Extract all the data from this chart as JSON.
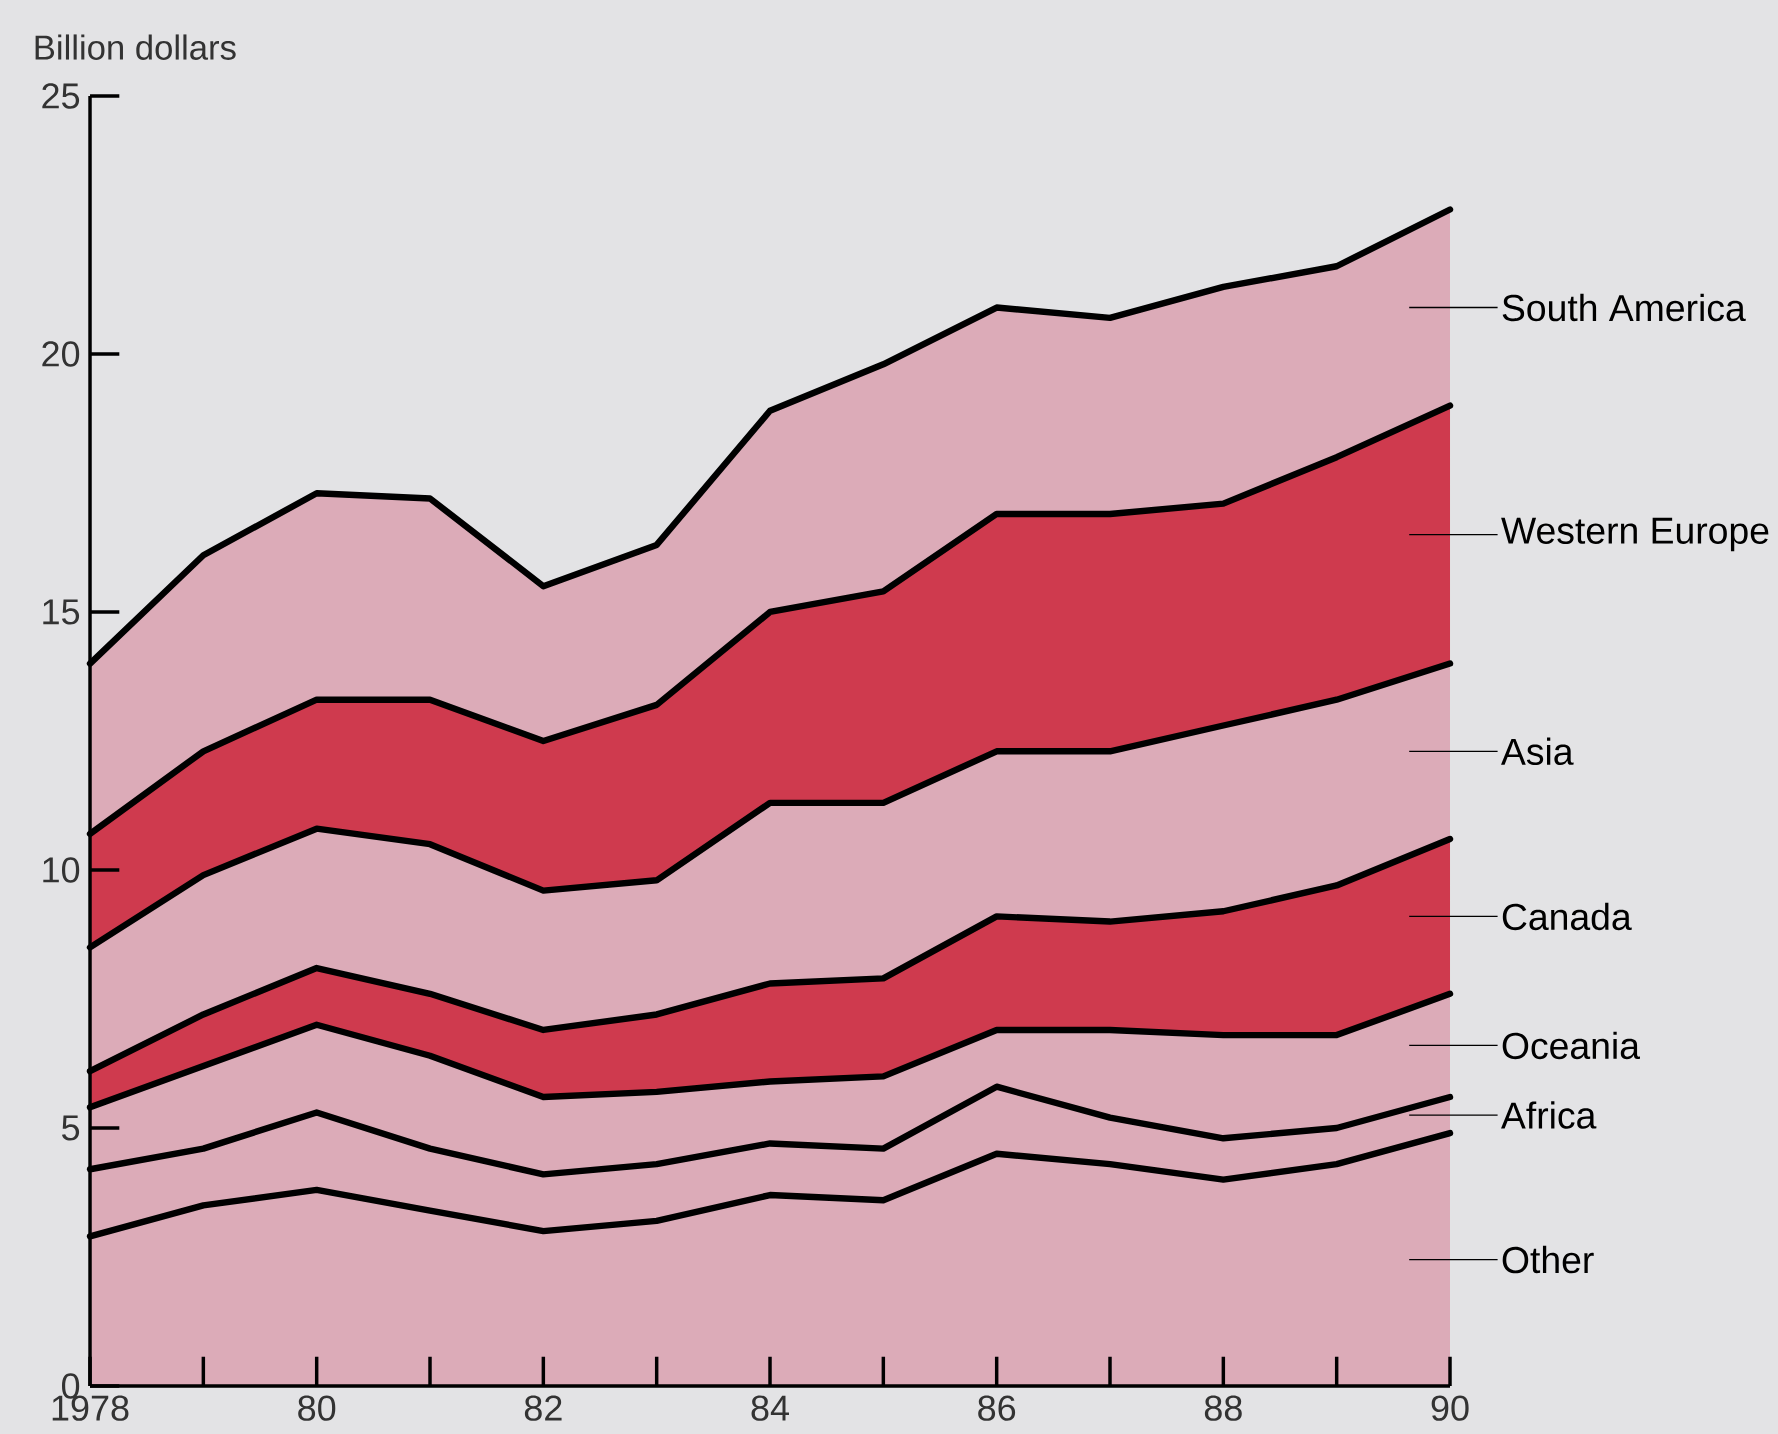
{
  "chart_data": {
    "type": "area",
    "stacked": true,
    "legend": "right",
    "ylabel": "Billion dollars",
    "x": [
      1978,
      1979,
      1980,
      1981,
      1982,
      1983,
      1984,
      1985,
      1986,
      1987,
      1988,
      1989,
      1990
    ],
    "xlim": [
      1978,
      1990
    ],
    "xticks": [
      {
        "value": 1978,
        "label": "1978"
      },
      {
        "value": 1979,
        "label": null
      },
      {
        "value": 1980,
        "label": "80"
      },
      {
        "value": 1981,
        "label": null
      },
      {
        "value": 1982,
        "label": "82"
      },
      {
        "value": 1983,
        "label": null
      },
      {
        "value": 1984,
        "label": "84"
      },
      {
        "value": 1985,
        "label": null
      },
      {
        "value": 1986,
        "label": "86"
      },
      {
        "value": 1987,
        "label": null
      },
      {
        "value": 1988,
        "label": "88"
      },
      {
        "value": 1989,
        "label": null
      },
      {
        "value": 1990,
        "label": "90"
      }
    ],
    "ylim": [
      0,
      25
    ],
    "yticks": [
      0,
      5,
      10,
      15,
      20,
      25
    ],
    "series": [
      {
        "name": "Other",
        "color": "#dcabb8",
        "values": [
          2.9,
          3.5,
          3.8,
          3.4,
          3.0,
          3.2,
          3.7,
          3.6,
          4.5,
          4.3,
          4.0,
          4.3,
          4.9
        ]
      },
      {
        "name": "Africa",
        "color": "#dcabb8",
        "values": [
          1.3,
          1.1,
          1.5,
          1.2,
          1.1,
          1.1,
          1.0,
          1.0,
          1.3,
          0.9,
          0.8,
          0.7,
          0.7
        ]
      },
      {
        "name": "Oceania",
        "color": "#dcabb8",
        "values": [
          1.2,
          1.6,
          1.7,
          1.8,
          1.5,
          1.4,
          1.2,
          1.4,
          1.1,
          1.7,
          2.0,
          1.8,
          2.0
        ]
      },
      {
        "name": "Canada",
        "color": "#cf3a4e",
        "values": [
          0.7,
          1.0,
          1.1,
          1.2,
          1.3,
          1.5,
          1.9,
          1.9,
          2.2,
          2.1,
          2.4,
          2.9,
          3.0
        ]
      },
      {
        "name": "Asia",
        "color": "#dcabb8",
        "values": [
          2.4,
          2.7,
          2.7,
          2.9,
          2.7,
          2.6,
          3.5,
          3.4,
          3.2,
          3.3,
          3.6,
          3.6,
          3.4
        ]
      },
      {
        "name": "Western Europe",
        "color": "#cf3a4e",
        "values": [
          2.2,
          2.4,
          2.5,
          2.8,
          2.9,
          3.4,
          3.7,
          4.1,
          4.6,
          4.6,
          4.3,
          4.7,
          5.0
        ]
      },
      {
        "name": "South America",
        "color": "#dcabb8",
        "values": [
          3.3,
          3.8,
          4.0,
          3.9,
          3.0,
          3.1,
          3.9,
          4.4,
          4.0,
          3.8,
          4.2,
          3.7,
          3.8
        ]
      }
    ]
  }
}
